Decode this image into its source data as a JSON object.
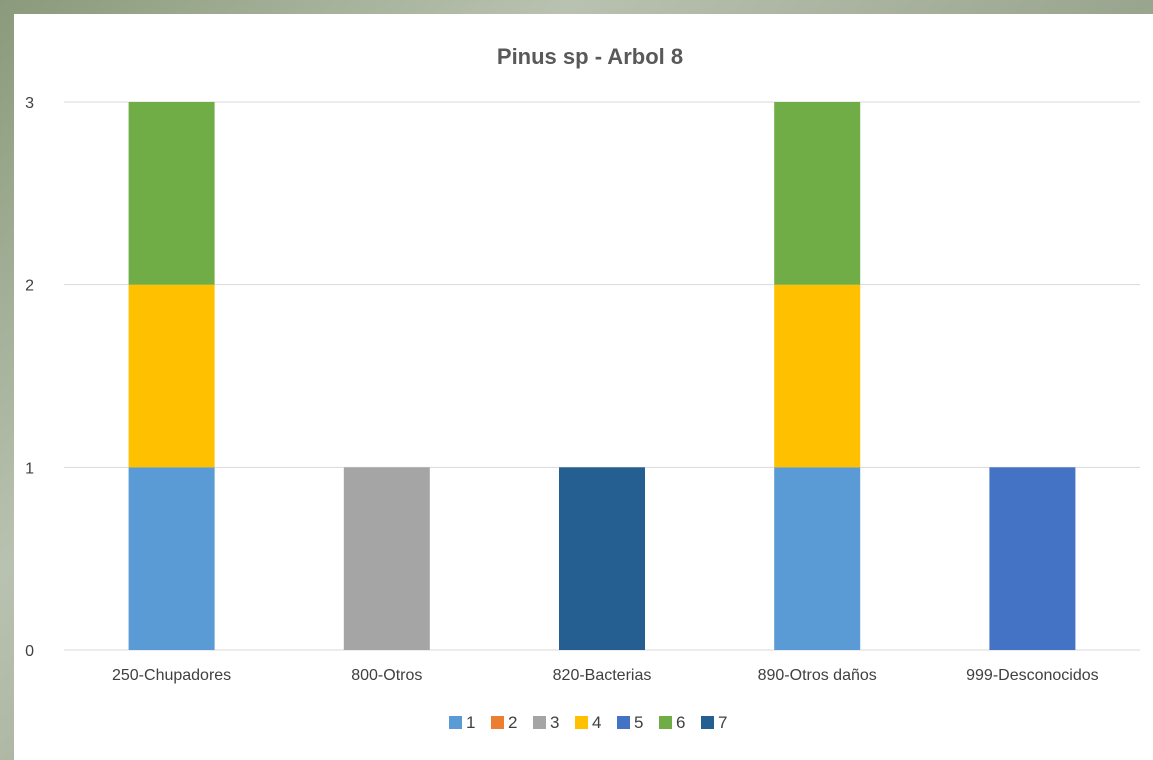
{
  "chart_data": {
    "type": "bar",
    "stacked": true,
    "title": "Pinus sp - Arbol 8",
    "xlabel": "",
    "ylabel": "",
    "ylim": [
      0,
      3
    ],
    "yticks": [
      0,
      1,
      2,
      3
    ],
    "grid": true,
    "legend_position": "bottom",
    "categories": [
      "250-Chupadores",
      "800-Otros",
      "820-Bacterias",
      "890-Otros daños",
      "999-Desconocidos"
    ],
    "series": [
      {
        "name": "1",
        "color": "#5B9BD5",
        "values": [
          1,
          0,
          0,
          1,
          0
        ]
      },
      {
        "name": "2",
        "color": "#ED7D31",
        "values": [
          0,
          0,
          0,
          0,
          0
        ]
      },
      {
        "name": "3",
        "color": "#A5A5A5",
        "values": [
          0,
          1,
          0,
          0,
          0
        ]
      },
      {
        "name": "4",
        "color": "#FFC000",
        "values": [
          1,
          0,
          0,
          1,
          0
        ]
      },
      {
        "name": "5",
        "color": "#4472C4",
        "values": [
          0,
          0,
          0,
          0,
          1
        ]
      },
      {
        "name": "6",
        "color": "#70AD47",
        "values": [
          1,
          0,
          0,
          1,
          0
        ]
      },
      {
        "name": "7",
        "color": "#255E91",
        "values": [
          0,
          0,
          1,
          0,
          0
        ]
      }
    ]
  }
}
